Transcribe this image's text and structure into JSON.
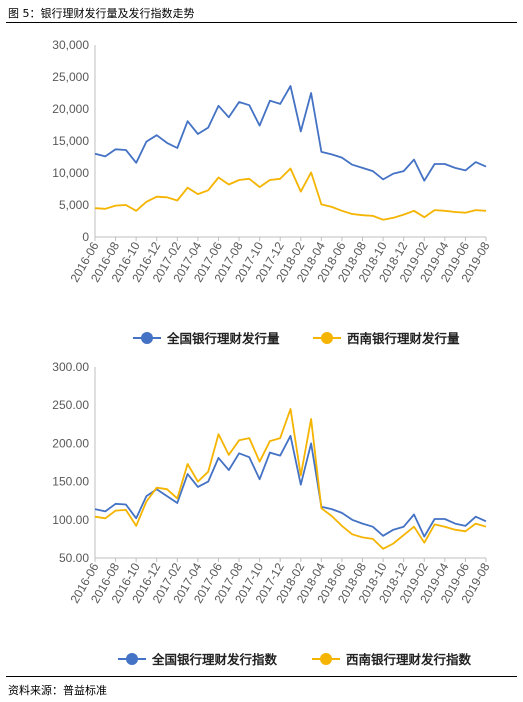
{
  "figure": {
    "title": "图 5：银行理财发行量及发行指数走势",
    "source": "资料来源：普益标准"
  },
  "colors": {
    "national": "#4472C4",
    "southwest": "#F5B400"
  },
  "chart_data": [
    {
      "type": "line",
      "title": "",
      "xlabel": "",
      "ylabel": "",
      "ylim": [
        0,
        30000
      ],
      "y_ticks": [
        "0",
        "5,000",
        "10,000",
        "15,000",
        "20,000",
        "25,000",
        "30,000"
      ],
      "y_tick_values": [
        0,
        5000,
        10000,
        15000,
        20000,
        25000,
        30000
      ],
      "x": [
        "2016-06",
        "2016-07",
        "2016-08",
        "2016-09",
        "2016-10",
        "2016-11",
        "2016-12",
        "2017-01",
        "2017-02",
        "2017-03",
        "2017-04",
        "2017-05",
        "2017-06",
        "2017-07",
        "2017-08",
        "2017-09",
        "2017-10",
        "2017-11",
        "2017-12",
        "2018-01",
        "2018-02",
        "2018-03",
        "2018-04",
        "2018-05",
        "2018-06",
        "2018-07",
        "2018-08",
        "2018-09",
        "2018-10",
        "2018-11",
        "2018-12",
        "2019-01",
        "2019-02",
        "2019-03",
        "2019-04",
        "2019-05",
        "2019-06",
        "2019-07",
        "2019-08"
      ],
      "x_tick_labels": [
        "2016-06",
        "2016-08",
        "2016-10",
        "2016-12",
        "2017-02",
        "2017-04",
        "2017-06",
        "2017-08",
        "2017-10",
        "2017-12",
        "2018-02",
        "2018-04",
        "2018-06",
        "2018-08",
        "2018-10",
        "2018-12",
        "2019-02",
        "2019-04",
        "2019-06",
        "2019-08"
      ],
      "legend_position": "bottom",
      "grid": false,
      "series": [
        {
          "name": "全国银行理财发行量",
          "color": "#4472C4",
          "values": [
            13000,
            12600,
            13700,
            13600,
            11600,
            14900,
            15900,
            14700,
            13900,
            18100,
            16100,
            17100,
            20500,
            18700,
            21100,
            20600,
            17400,
            21300,
            20800,
            23600,
            16500,
            22500,
            13300,
            12900,
            12400,
            11300,
            10800,
            10300,
            9000,
            9900,
            10300,
            12100,
            8800,
            11400,
            11400,
            10800,
            10400,
            11700,
            11000
          ]
        },
        {
          "name": "西南银行理财发行量",
          "color": "#F5B400",
          "values": [
            4500,
            4400,
            4900,
            5000,
            4100,
            5500,
            6300,
            6200,
            5700,
            7700,
            6700,
            7300,
            9300,
            8200,
            8900,
            9100,
            7800,
            8900,
            9100,
            10700,
            7100,
            10100,
            5100,
            4700,
            4100,
            3600,
            3400,
            3300,
            2700,
            3000,
            3500,
            4100,
            3100,
            4200,
            4100,
            3900,
            3800,
            4200,
            4100
          ]
        }
      ]
    },
    {
      "type": "line",
      "title": "",
      "xlabel": "",
      "ylabel": "",
      "ylim": [
        50,
        300
      ],
      "y_ticks": [
        "50.00",
        "100.00",
        "150.00",
        "200.00",
        "250.00",
        "300.00"
      ],
      "y_tick_values": [
        50,
        100,
        150,
        200,
        250,
        300
      ],
      "x": [
        "2016-06",
        "2016-07",
        "2016-08",
        "2016-09",
        "2016-10",
        "2016-11",
        "2016-12",
        "2017-01",
        "2017-02",
        "2017-03",
        "2017-04",
        "2017-05",
        "2017-06",
        "2017-07",
        "2017-08",
        "2017-09",
        "2017-10",
        "2017-11",
        "2017-12",
        "2018-01",
        "2018-02",
        "2018-03",
        "2018-04",
        "2018-05",
        "2018-06",
        "2018-07",
        "2018-08",
        "2018-09",
        "2018-10",
        "2018-11",
        "2018-12",
        "2019-01",
        "2019-02",
        "2019-03",
        "2019-04",
        "2019-05",
        "2019-06",
        "2019-07",
        "2019-08"
      ],
      "x_tick_labels": [
        "2016-06",
        "2016-08",
        "2016-10",
        "2016-12",
        "2017-02",
        "2017-04",
        "2017-06",
        "2017-08",
        "2017-10",
        "2017-12",
        "2018-02",
        "2018-04",
        "2018-06",
        "2018-08",
        "2018-10",
        "2018-12",
        "2019-02",
        "2019-04",
        "2019-06",
        "2019-08"
      ],
      "legend_position": "bottom",
      "grid": false,
      "series": [
        {
          "name": "全国银行理财发行指数",
          "color": "#4472C4",
          "values": [
            114,
            111,
            121,
            120,
            102,
            131,
            140,
            131,
            122,
            160,
            143,
            150,
            181,
            165,
            187,
            182,
            153,
            188,
            184,
            210,
            146,
            200,
            117,
            114,
            109,
            100,
            95,
            91,
            79,
            87,
            91,
            107,
            78,
            101,
            101,
            95,
            92,
            104,
            98
          ]
        },
        {
          "name": "西南银行理财发行指数",
          "color": "#F5B400",
          "values": [
            104,
            102,
            112,
            113,
            92,
            124,
            142,
            140,
            128,
            173,
            150,
            163,
            212,
            185,
            204,
            207,
            176,
            203,
            207,
            245,
            158,
            232,
            115,
            105,
            92,
            81,
            77,
            75,
            62,
            69,
            80,
            91,
            70,
            94,
            91,
            87,
            85,
            95,
            91
          ]
        }
      ]
    }
  ]
}
